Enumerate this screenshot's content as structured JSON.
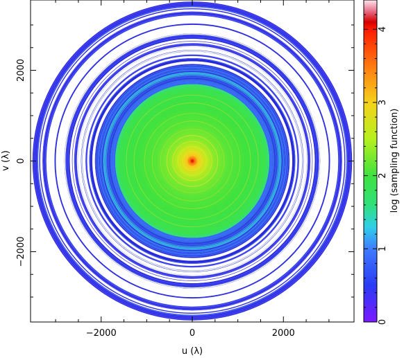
{
  "chart_data": {
    "type": "heatmap",
    "title": "",
    "xlabel": "u (λ)",
    "ylabel": "v (λ)",
    "xlim": [
      -3550,
      3550
    ],
    "ylim": [
      -3550,
      3550
    ],
    "x_ticks": [
      -2000,
      0,
      2000
    ],
    "x_tick_labels": [
      "−2000",
      "0",
      "2000"
    ],
    "y_ticks": [
      -2000,
      0,
      2000
    ],
    "y_tick_labels": [
      "−2000",
      "0",
      "2000"
    ],
    "colorbar": {
      "label": "log (sampling function)",
      "range": [
        0,
        4.4
      ],
      "ticks": [
        0,
        1,
        2,
        3,
        4
      ],
      "tick_labels": [
        "0",
        "1",
        "2",
        "3",
        "4"
      ],
      "position": "right"
    },
    "radial_profile": {
      "description_units": "radius in λ, value in log(sampling function)",
      "radius": [
        0,
        60,
        150,
        300,
        500,
        800,
        1200,
        1600,
        1750,
        2000,
        2100,
        2400,
        3500
      ],
      "log_value": [
        4.1,
        3.5,
        3.0,
        2.6,
        2.3,
        2.1,
        2.0,
        1.9,
        1.5,
        1.2,
        0.9,
        0.6,
        0.4
      ]
    },
    "grid": false
  }
}
